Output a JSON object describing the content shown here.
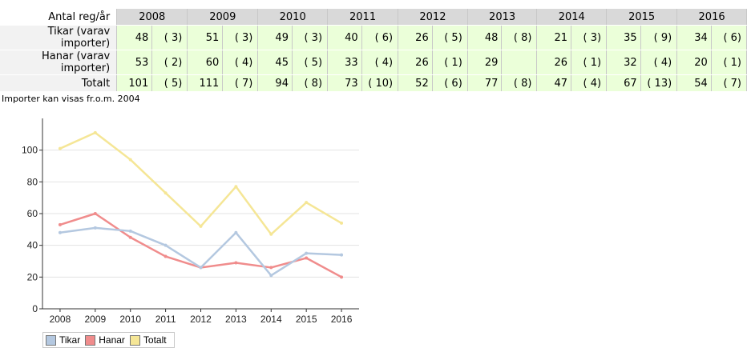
{
  "table": {
    "header_label": "Antal reg/år",
    "years": [
      "2008",
      "2009",
      "2010",
      "2011",
      "2012",
      "2013",
      "2014",
      "2015",
      "2016"
    ],
    "rows": [
      {
        "label": "Tikar (varav importer)",
        "values": [
          "48",
          "51",
          "49",
          "40",
          "26",
          "48",
          "21",
          "35",
          "34"
        ],
        "imports": [
          "( 3)",
          "( 3)",
          "( 3)",
          "( 6)",
          "( 5)",
          "( 8)",
          "( 3)",
          "( 9)",
          "( 6)"
        ]
      },
      {
        "label": "Hanar (varav importer)",
        "values": [
          "53",
          "60",
          "45",
          "33",
          "26",
          "29",
          "26",
          "32",
          "20"
        ],
        "imports": [
          "( 2)",
          "( 4)",
          "( 5)",
          "( 4)",
          "( 1)",
          "",
          "( 1)",
          "( 4)",
          "( 1)"
        ]
      },
      {
        "label": "Totalt",
        "values": [
          "101",
          "111",
          "94",
          "73",
          "52",
          "77",
          "47",
          "67",
          "54"
        ],
        "imports": [
          "( 5)",
          "( 7)",
          "( 8)",
          "( 10)",
          "( 6)",
          "( 8)",
          "( 4)",
          "( 13)",
          "( 7)"
        ]
      }
    ]
  },
  "note": "Importer kan visas fr.o.m. 2004",
  "chart_data": {
    "type": "line",
    "categories": [
      "2008",
      "2009",
      "2010",
      "2011",
      "2012",
      "2013",
      "2014",
      "2015",
      "2016"
    ],
    "series": [
      {
        "name": "Tikar",
        "values": [
          48,
          51,
          49,
          40,
          26,
          48,
          21,
          35,
          34
        ],
        "color": "#b4c8e0"
      },
      {
        "name": "Hanar",
        "values": [
          53,
          60,
          45,
          33,
          26,
          29,
          26,
          32,
          20
        ],
        "color": "#f08c8c"
      },
      {
        "name": "Totalt",
        "values": [
          101,
          111,
          94,
          73,
          52,
          77,
          47,
          67,
          54
        ],
        "color": "#f5e696"
      }
    ],
    "ylim": [
      0,
      120
    ],
    "yticks": [
      "0",
      "20",
      "40",
      "60",
      "80",
      "100"
    ],
    "grid": true,
    "legend": "bottom-left"
  }
}
